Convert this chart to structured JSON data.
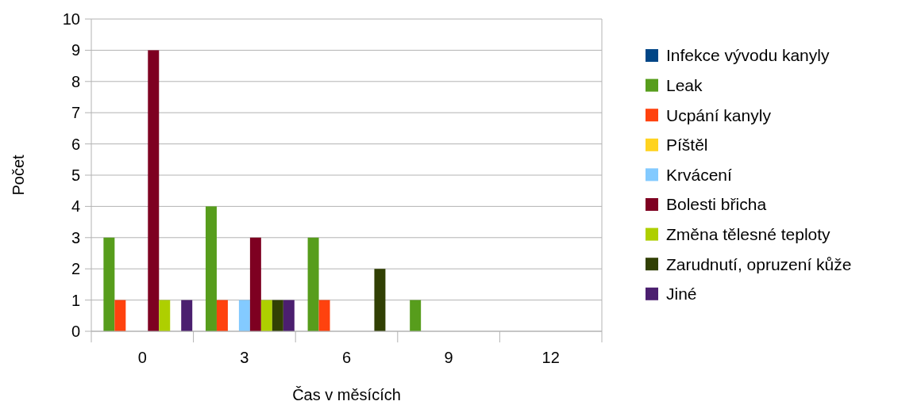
{
  "chart_data": {
    "type": "bar",
    "xlabel": "Čas v měsících",
    "ylabel": "Počet",
    "categories": [
      "0",
      "3",
      "6",
      "9",
      "12"
    ],
    "ylim": [
      0,
      10
    ],
    "yticks": [
      0,
      1,
      2,
      3,
      4,
      5,
      6,
      7,
      8,
      9,
      10
    ],
    "grid": "y",
    "legend": "right",
    "series": [
      {
        "name": "Infekce vývodu kanyly",
        "color": "#004586",
        "values": [
          0,
          0,
          0,
          0,
          0
        ]
      },
      {
        "name": "Leak",
        "color": "#579d1c",
        "values": [
          3,
          4,
          3,
          1,
          0
        ]
      },
      {
        "name": "Ucpání kanyly",
        "color": "#ff420e",
        "values": [
          1,
          1,
          1,
          0,
          0
        ]
      },
      {
        "name": "Píštěl",
        "color": "#ffd320",
        "values": [
          0,
          0,
          0,
          0,
          0
        ]
      },
      {
        "name": "Krvácení",
        "color": "#83caff",
        "values": [
          0,
          1,
          0,
          0,
          0
        ]
      },
      {
        "name": "Bolesti břicha",
        "color": "#7e0021",
        "values": [
          9,
          3,
          0,
          0,
          0
        ]
      },
      {
        "name": "Změna tělesné teploty",
        "color": "#aecf00",
        "values": [
          1,
          1,
          0,
          0,
          0
        ]
      },
      {
        "name": "Zarudnutí, opruzení kůže",
        "color": "#314004",
        "values": [
          0,
          1,
          2,
          0,
          0
        ]
      },
      {
        "name": "Jiné",
        "color": "#4b1f6f",
        "values": [
          1,
          1,
          0,
          0,
          0
        ]
      }
    ]
  }
}
